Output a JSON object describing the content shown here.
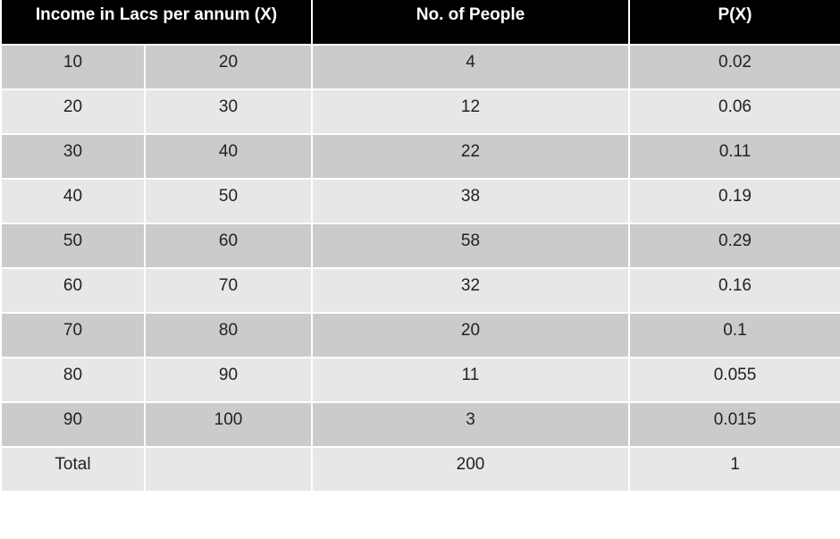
{
  "table": {
    "headers": {
      "income": "Income in Lacs per annum (X)",
      "people": "No. of People",
      "prob": "P(X)"
    },
    "rows": [
      {
        "from": "10",
        "to": "20",
        "people": "4",
        "prob": "0.02"
      },
      {
        "from": "20",
        "to": "30",
        "people": "12",
        "prob": "0.06"
      },
      {
        "from": "30",
        "to": "40",
        "people": "22",
        "prob": "0.11"
      },
      {
        "from": "40",
        "to": "50",
        "people": "38",
        "prob": "0.19"
      },
      {
        "from": "50",
        "to": "60",
        "people": "58",
        "prob": "0.29"
      },
      {
        "from": "60",
        "to": "70",
        "people": "32",
        "prob": "0.16"
      },
      {
        "from": "70",
        "to": "80",
        "people": "20",
        "prob": "0.1"
      },
      {
        "from": "80",
        "to": "90",
        "people": "11",
        "prob": "0.055"
      },
      {
        "from": "90",
        "to": "100",
        "people": "3",
        "prob": "0.015"
      }
    ],
    "total": {
      "label": "Total",
      "blank": "",
      "people": "200",
      "prob": "1"
    }
  }
}
